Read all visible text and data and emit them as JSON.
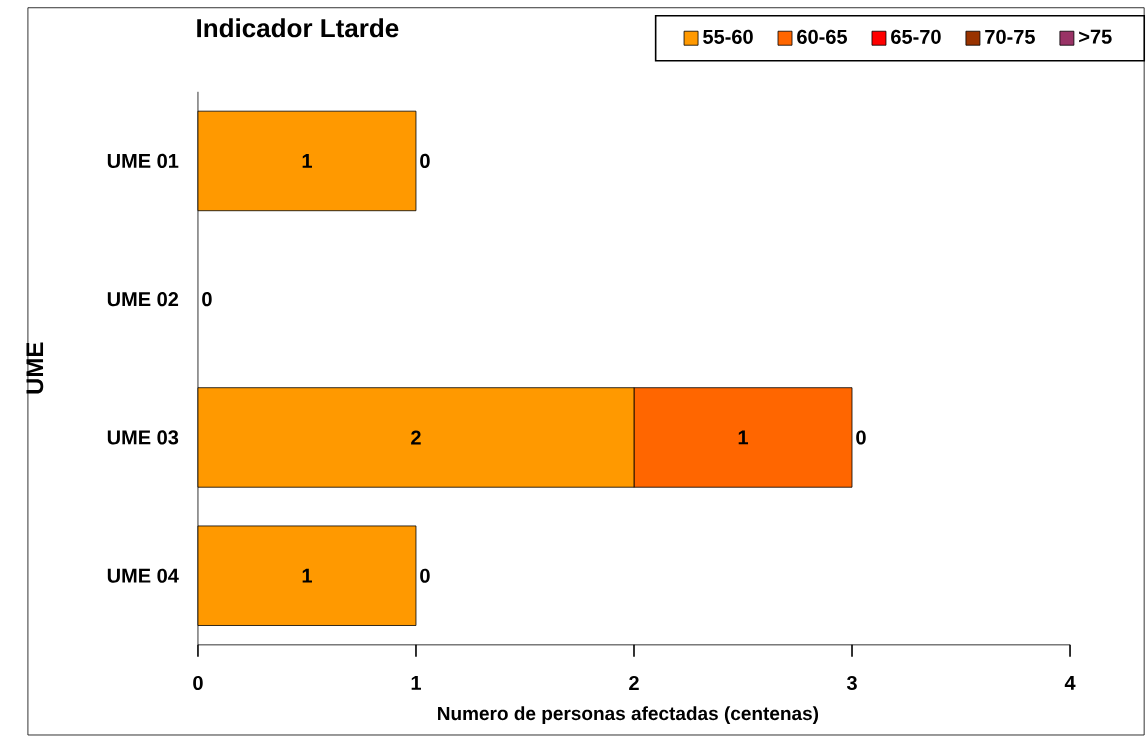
{
  "chart_data": {
    "type": "bar",
    "orientation": "horizontal",
    "stacked": true,
    "title": "Indicador Ltarde",
    "xlabel": "Numero de personas afectadas (centenas)",
    "ylabel": "UME",
    "categories": [
      "UME 01",
      "UME 02",
      "UME 03",
      "UME 04"
    ],
    "series": [
      {
        "name": "55-60",
        "color": "#ff9900",
        "values": [
          1,
          0,
          2,
          1
        ],
        "value_labels": [
          "1",
          "0",
          "2",
          "1"
        ]
      },
      {
        "name": "60-65",
        "color": "#ff6600",
        "values": [
          0,
          0,
          1,
          0
        ],
        "value_labels": [
          "0",
          null,
          "1",
          "0"
        ]
      },
      {
        "name": "65-70",
        "color": "#ff0000",
        "values": [
          0,
          0,
          0,
          0
        ],
        "value_labels": [
          null,
          null,
          "0",
          null
        ]
      },
      {
        "name": "70-75",
        "color": "#993300",
        "values": [
          0,
          0,
          0,
          0
        ],
        "value_labels": [
          null,
          null,
          null,
          null
        ]
      },
      {
        "name": ">75",
        "color": "#993366",
        "values": [
          0,
          0,
          0,
          0
        ],
        "value_labels": [
          null,
          null,
          null,
          null
        ]
      }
    ],
    "xlim": [
      0,
      4
    ],
    "xticks": [
      0,
      1,
      2,
      3,
      4
    ],
    "legend": "top right"
  }
}
